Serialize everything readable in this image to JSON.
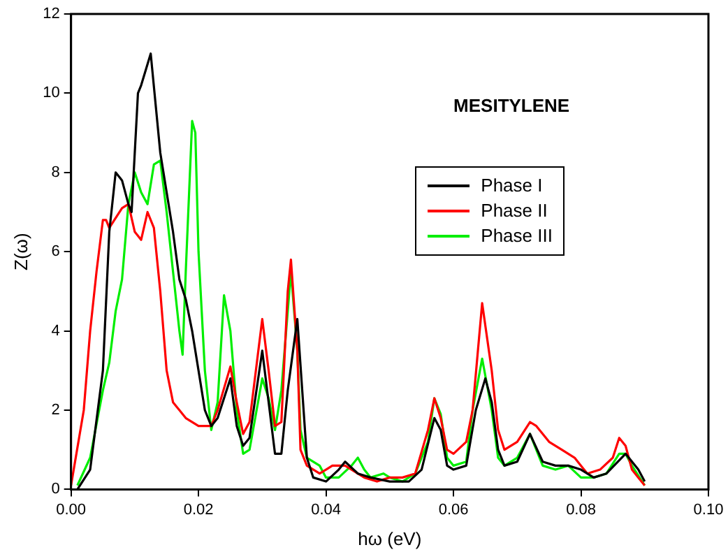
{
  "chart_data": {
    "type": "line",
    "xlabel": "hω (eV)",
    "ylabel": "Z(ω)",
    "annotations": [
      "MESITYLENE"
    ],
    "xlim": [
      0,
      0.1
    ],
    "ylim": [
      0,
      12
    ],
    "xticks": [
      {
        "value": 0,
        "label": "0.00"
      },
      {
        "value": 0.02,
        "label": "0.02"
      },
      {
        "value": 0.04,
        "label": "0.04"
      },
      {
        "value": 0.06,
        "label": "0.06"
      },
      {
        "value": 0.08,
        "label": "0.08"
      },
      {
        "value": 0.1,
        "label": "0.10"
      }
    ],
    "yticks": [
      0,
      2,
      4,
      6,
      8,
      10,
      12
    ],
    "grid": false,
    "legend": "right",
    "marker": "none",
    "line_style": "solid",
    "series": [
      {
        "name": "Phase I",
        "color": "#000000",
        "x": [
          0.001,
          0.003,
          0.005,
          0.006,
          0.007,
          0.008,
          0.009,
          0.0095,
          0.0105,
          0.011,
          0.0125,
          0.014,
          0.015,
          0.016,
          0.017,
          0.018,
          0.019,
          0.02,
          0.021,
          0.022,
          0.023,
          0.025,
          0.026,
          0.027,
          0.028,
          0.03,
          0.031,
          0.032,
          0.033,
          0.034,
          0.0355,
          0.037,
          0.038,
          0.04,
          0.042,
          0.043,
          0.045,
          0.047,
          0.05,
          0.053,
          0.055,
          0.057,
          0.058,
          0.059,
          0.06,
          0.062,
          0.0635,
          0.065,
          0.066,
          0.067,
          0.068,
          0.07,
          0.072,
          0.074,
          0.076,
          0.078,
          0.08,
          0.082,
          0.084,
          0.087,
          0.089,
          0.09
        ],
        "values": [
          0,
          0.5,
          3,
          6.5,
          8,
          7.8,
          7.2,
          7,
          10,
          10.2,
          11,
          8.5,
          7.5,
          6.5,
          5.3,
          4.8,
          4,
          3,
          2,
          1.6,
          1.8,
          2.8,
          1.6,
          1.1,
          1.3,
          3.5,
          2.2,
          0.9,
          0.9,
          2.5,
          4.3,
          0.8,
          0.3,
          0.2,
          0.5,
          0.7,
          0.4,
          0.3,
          0.2,
          0.2,
          0.5,
          1.8,
          1.5,
          0.6,
          0.5,
          0.6,
          2,
          2.8,
          2.2,
          1,
          0.6,
          0.7,
          1.4,
          0.7,
          0.6,
          0.6,
          0.5,
          0.3,
          0.4,
          0.9,
          0.5,
          0.2
        ]
      },
      {
        "name": "Phase II",
        "color": "#ff0000",
        "x": [
          0,
          0.002,
          0.003,
          0.004,
          0.005,
          0.0055,
          0.006,
          0.008,
          0.009,
          0.01,
          0.011,
          0.012,
          0.013,
          0.014,
          0.015,
          0.016,
          0.018,
          0.02,
          0.022,
          0.023,
          0.025,
          0.026,
          0.027,
          0.028,
          0.03,
          0.031,
          0.032,
          0.033,
          0.034,
          0.0345,
          0.0355,
          0.036,
          0.037,
          0.039,
          0.04,
          0.041,
          0.043,
          0.046,
          0.048,
          0.05,
          0.052,
          0.054,
          0.056,
          0.057,
          0.058,
          0.059,
          0.06,
          0.062,
          0.063,
          0.0645,
          0.066,
          0.067,
          0.068,
          0.07,
          0.072,
          0.073,
          0.075,
          0.077,
          0.079,
          0.08,
          0.081,
          0.083,
          0.085,
          0.086,
          0.087,
          0.088,
          0.089,
          0.09
        ],
        "values": [
          0.1,
          2,
          4,
          5.5,
          6.8,
          6.8,
          6.6,
          7.1,
          7.2,
          6.5,
          6.3,
          7,
          6.6,
          5,
          3,
          2.2,
          1.8,
          1.6,
          1.6,
          2,
          3.1,
          2.2,
          1.4,
          1.7,
          4.3,
          3,
          1.6,
          1.7,
          5,
          5.8,
          3.5,
          1,
          0.6,
          0.4,
          0.5,
          0.6,
          0.6,
          0.3,
          0.2,
          0.3,
          0.3,
          0.4,
          1.5,
          2.3,
          1.8,
          1,
          0.9,
          1.2,
          2,
          4.7,
          3,
          1.5,
          1,
          1.2,
          1.7,
          1.6,
          1.2,
          1,
          0.8,
          0.6,
          0.4,
          0.5,
          0.8,
          1.3,
          1.1,
          0.5,
          0.3,
          0.1
        ]
      },
      {
        "name": "Phase III",
        "color": "#00ee00",
        "x": [
          0.001,
          0.003,
          0.005,
          0.006,
          0.007,
          0.008,
          0.009,
          0.01,
          0.011,
          0.012,
          0.013,
          0.014,
          0.015,
          0.016,
          0.017,
          0.0175,
          0.018,
          0.019,
          0.0195,
          0.02,
          0.021,
          0.022,
          0.023,
          0.024,
          0.025,
          0.026,
          0.027,
          0.028,
          0.03,
          0.031,
          0.032,
          0.033,
          0.0345,
          0.0355,
          0.036,
          0.037,
          0.039,
          0.04,
          0.042,
          0.044,
          0.045,
          0.046,
          0.047,
          0.049,
          0.05,
          0.052,
          0.054,
          0.056,
          0.057,
          0.058,
          0.059,
          0.06,
          0.062,
          0.063,
          0.0645,
          0.066,
          0.067,
          0.068,
          0.07,
          0.072,
          0.074,
          0.076,
          0.078,
          0.08,
          0.082,
          0.084,
          0.086,
          0.087,
          0.088,
          0.09
        ],
        "values": [
          0.1,
          0.8,
          2.5,
          3.2,
          4.5,
          5.3,
          7.2,
          8,
          7.5,
          7.2,
          8.2,
          8.3,
          7,
          5.5,
          4,
          3.4,
          5.5,
          9.3,
          9,
          6,
          3,
          1.5,
          2.2,
          4.9,
          4,
          2,
          0.9,
          1,
          2.8,
          2.3,
          1.5,
          2.5,
          5.5,
          3.5,
          1.5,
          0.8,
          0.6,
          0.3,
          0.3,
          0.6,
          0.8,
          0.5,
          0.3,
          0.4,
          0.3,
          0.2,
          0.4,
          1.2,
          2.3,
          1.9,
          0.8,
          0.6,
          0.7,
          2,
          3.3,
          2,
          0.8,
          0.6,
          0.8,
          1.4,
          0.6,
          0.5,
          0.6,
          0.3,
          0.3,
          0.4,
          0.9,
          0.9,
          0.6,
          0.1
        ]
      }
    ]
  }
}
